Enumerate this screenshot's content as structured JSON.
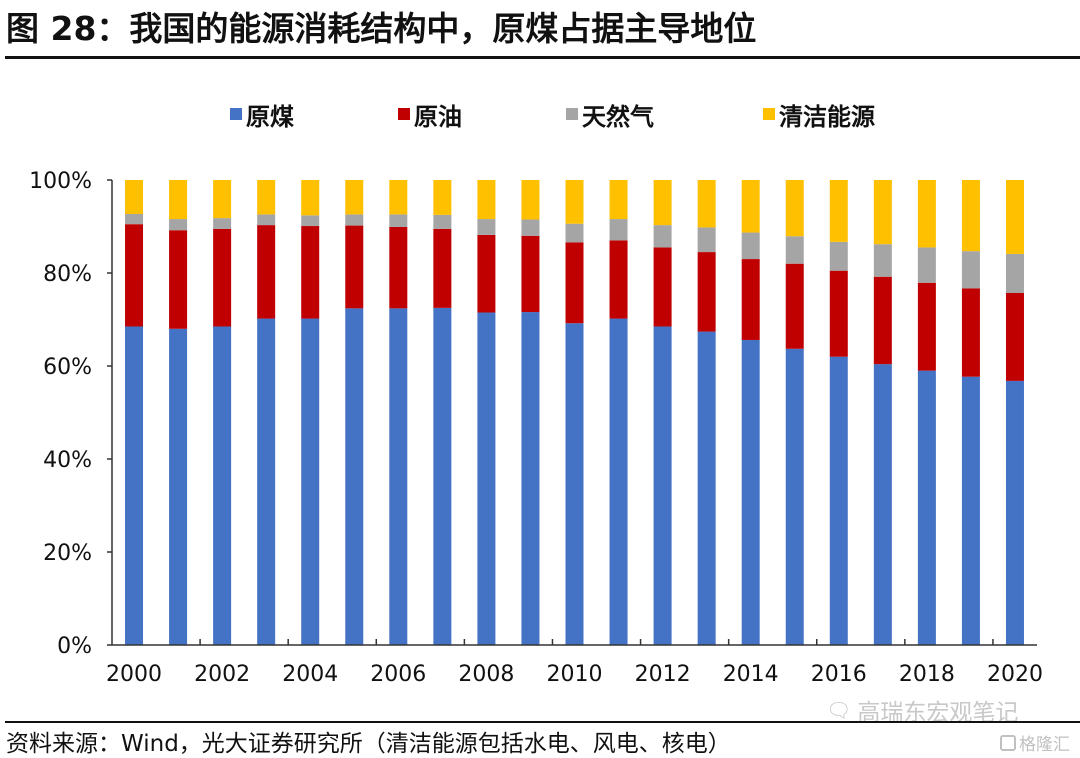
{
  "title": "图 28：我国的能源消耗结构中，原煤占据主导地位",
  "source": "资料来源：Wind，光大证券研究所（清洁能源包括水电、风电、核电）",
  "watermarks": {
    "wechat": "高瑞东宏观笔记",
    "gelonghui": "格隆汇"
  },
  "chart_data": {
    "type": "bar",
    "stacked": true,
    "title": "",
    "xlabel": "",
    "ylabel": "",
    "ylim": [
      0,
      100
    ],
    "y_ticks": [
      "0%",
      "20%",
      "40%",
      "60%",
      "80%",
      "100%"
    ],
    "x_tick_labels": [
      "2000",
      "2002",
      "2004",
      "2006",
      "2008",
      "2010",
      "2012",
      "2014",
      "2016",
      "2018",
      "2020"
    ],
    "legend_position": "top",
    "categories": [
      "2000",
      "2001",
      "2002",
      "2003",
      "2004",
      "2005",
      "2006",
      "2007",
      "2008",
      "2009",
      "2010",
      "2011",
      "2012",
      "2013",
      "2014",
      "2015",
      "2016",
      "2017",
      "2018",
      "2019",
      "2020"
    ],
    "series": [
      {
        "name": "原煤",
        "color": "#4472C4",
        "values": [
          68.5,
          68.0,
          68.5,
          70.2,
          70.2,
          72.4,
          72.4,
          72.5,
          71.5,
          71.6,
          69.2,
          70.2,
          68.5,
          67.4,
          65.6,
          63.7,
          62.0,
          60.4,
          59.0,
          57.7,
          56.8
        ]
      },
      {
        "name": "原油",
        "color": "#C00000",
        "values": [
          22.0,
          21.2,
          21.0,
          20.1,
          19.9,
          17.8,
          17.5,
          17.0,
          16.7,
          16.4,
          17.4,
          16.8,
          17.0,
          17.1,
          17.4,
          18.3,
          18.5,
          18.8,
          18.9,
          19.0,
          18.9
        ]
      },
      {
        "name": "天然气",
        "color": "#A5A5A5",
        "values": [
          2.2,
          2.4,
          2.3,
          2.3,
          2.3,
          2.4,
          2.7,
          3.0,
          3.4,
          3.5,
          4.0,
          4.6,
          4.8,
          5.3,
          5.7,
          5.9,
          6.2,
          7.0,
          7.6,
          8.0,
          8.4
        ]
      },
      {
        "name": "清洁能源",
        "color": "#FFC000",
        "values": [
          7.3,
          8.4,
          8.2,
          7.4,
          7.6,
          7.4,
          7.4,
          7.5,
          8.4,
          8.5,
          9.4,
          8.4,
          9.7,
          10.2,
          11.3,
          12.1,
          13.3,
          13.8,
          14.5,
          15.3,
          15.9
        ]
      }
    ]
  }
}
